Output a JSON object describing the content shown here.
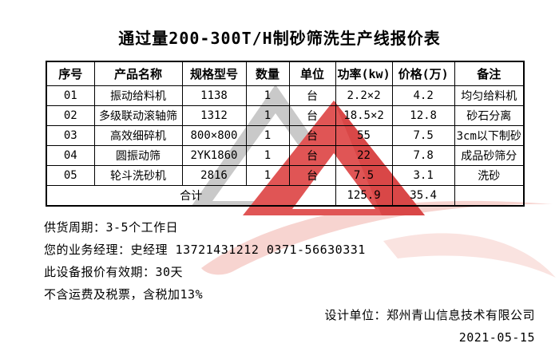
{
  "title": "通过量200-300T/H制砂筛洗生产线报价表",
  "table": {
    "headers": [
      "序号",
      "产品名称",
      "规格型号",
      "数量",
      "单位",
      "功率(kw)",
      "价格(万)",
      "备注"
    ],
    "rows": [
      [
        "01",
        "振动给料机",
        "1138",
        "1",
        "台",
        "2.2×2",
        "4.2",
        "均匀给料机"
      ],
      [
        "02",
        "多级联动滚轴筛",
        "1312",
        "1",
        "台",
        "18.5×2",
        "12.8",
        "砂石分离"
      ],
      [
        "03",
        "高效细碎机",
        "800×800",
        "1",
        "台",
        "55",
        "7.5",
        "3cm以下制砂"
      ],
      [
        "04",
        "圆振动筛",
        "2YK1860",
        "1",
        "台",
        "22",
        "7.8",
        "成品砂筛分"
      ],
      [
        "05",
        "轮斗洗砂机",
        "2816",
        "1",
        "台",
        "7.5",
        "3.1",
        "洗砂"
      ]
    ],
    "total": {
      "label": "合计",
      "power": "125.9",
      "price": "35.4",
      "note": ""
    }
  },
  "notes": [
    "供货周期：3-5个工作日",
    "您的业务经理：史经理 13721431212  0371-56630331",
    "此设备报价有效期：30天",
    "不含运费及税票，含税加13%"
  ],
  "footer": {
    "designer": "设计单位：郑州青山信息技术有限公司",
    "date": "2021-05-15"
  },
  "watermark": {
    "gray": "#c9c9c9",
    "red": "#e05555",
    "red_dark": "#d94747",
    "pink": "#f7d4d0",
    "pink_light": "#fae3e0"
  }
}
